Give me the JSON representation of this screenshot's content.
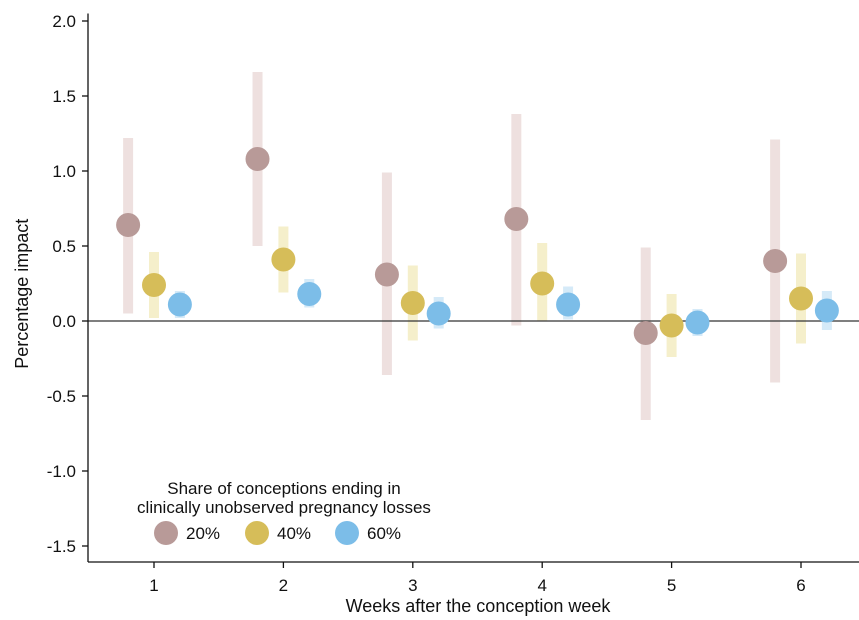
{
  "chart_data": {
    "type": "scatter",
    "subtype": "dot-with-confidence-interval",
    "xlabel": "Weeks after the conception week",
    "ylabel": "Percentage impact",
    "x": [
      1,
      2,
      3,
      4,
      5,
      6
    ],
    "x_tick_labels": [
      "1",
      "2",
      "3",
      "4",
      "5",
      "6"
    ],
    "y_ticks": [
      -1.5,
      -1.0,
      -0.5,
      0.0,
      0.5,
      1.0,
      1.5,
      2.0
    ],
    "y_tick_labels": [
      "-1.5",
      "-1.0",
      "-0.5",
      "0.0",
      "0.5",
      "1.0",
      "1.5",
      "2.0"
    ],
    "xlim": [
      0.5,
      6.45
    ],
    "ylim": [
      -1.6,
      2.05
    ],
    "reference_line_y": 0,
    "grid": false,
    "legend": {
      "title_lines": [
        "Share of conceptions ending in",
        "clinically unobserved pregnancy losses"
      ],
      "placement": "bottom-left"
    },
    "series": [
      {
        "name": "20%",
        "color": "#b89a98",
        "ci_color": "#eee0df",
        "x_offset": -0.2,
        "values": [
          0.64,
          1.08,
          0.31,
          0.68,
          -0.08,
          0.4
        ],
        "ci_low": [
          0.05,
          0.5,
          -0.36,
          -0.03,
          -0.66,
          -0.41
        ],
        "ci_high": [
          1.22,
          1.66,
          0.99,
          1.38,
          0.49,
          1.21
        ]
      },
      {
        "name": "40%",
        "color": "#d6bd59",
        "ci_color": "#f5efcb",
        "x_offset": 0,
        "values": [
          0.24,
          0.41,
          0.12,
          0.25,
          -0.03,
          0.15
        ],
        "ci_low": [
          0.02,
          0.19,
          -0.13,
          0.0,
          -0.24,
          -0.15
        ],
        "ci_high": [
          0.46,
          0.63,
          0.37,
          0.52,
          0.18,
          0.45
        ]
      },
      {
        "name": "60%",
        "color": "#7cbde8",
        "ci_color": "#d5eaf8",
        "x_offset": 0.2,
        "values": [
          0.11,
          0.18,
          0.05,
          0.11,
          -0.01,
          0.07
        ],
        "ci_low": [
          0.02,
          0.09,
          -0.05,
          0.01,
          -0.1,
          -0.06
        ],
        "ci_high": [
          0.2,
          0.28,
          0.16,
          0.23,
          0.08,
          0.2
        ]
      }
    ]
  }
}
